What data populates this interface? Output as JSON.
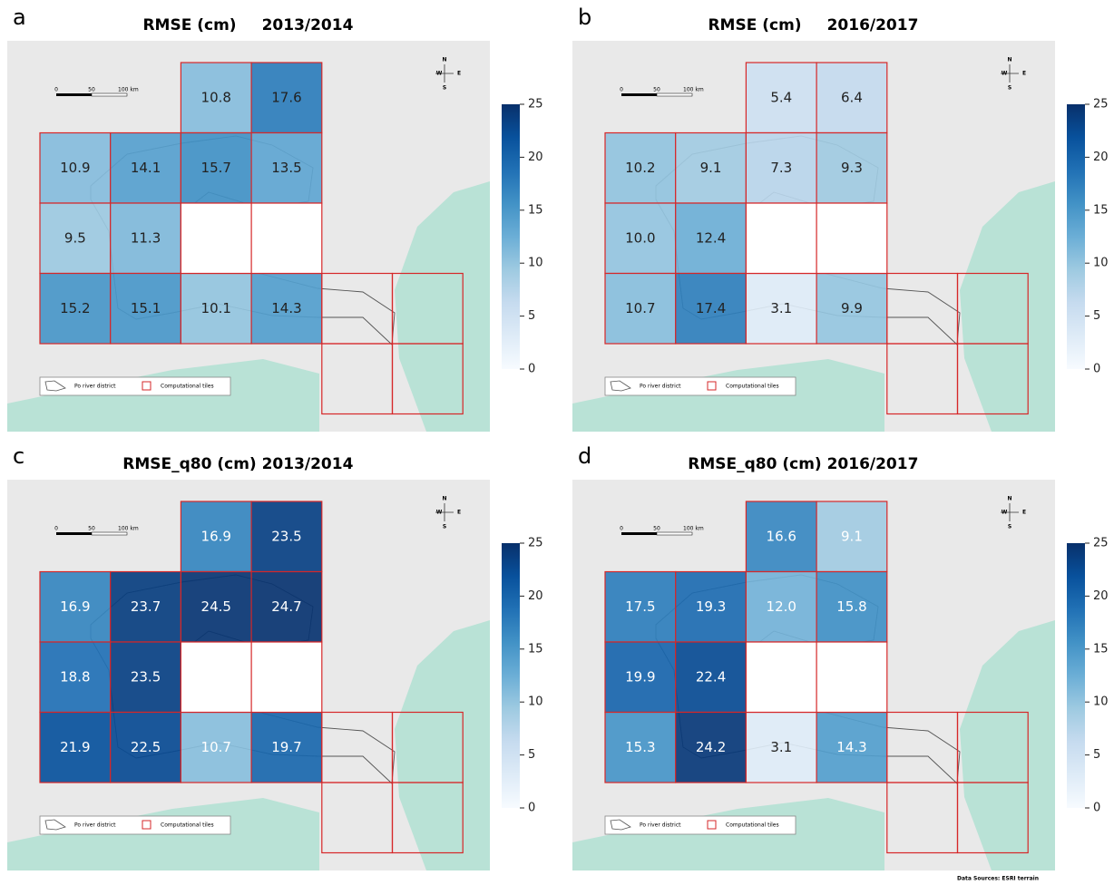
{
  "panels": [
    {
      "letter": "a",
      "metric": "RMSE (cm)",
      "period": "2013/2014",
      "label_color": "#222222",
      "values": [
        [
          null,
          null,
          10.8,
          17.6
        ],
        [
          10.9,
          14.1,
          15.7,
          13.5
        ],
        [
          9.5,
          11.3,
          null,
          null
        ],
        [
          15.2,
          15.1,
          10.1,
          14.3
        ]
      ]
    },
    {
      "letter": "b",
      "metric": "RMSE (cm)",
      "period": "2016/2017",
      "label_color": "#222222",
      "values": [
        [
          null,
          null,
          5.4,
          6.4
        ],
        [
          10.2,
          9.1,
          7.3,
          9.3
        ],
        [
          10,
          12.4,
          null,
          null
        ],
        [
          10.7,
          17.4,
          3.1,
          9.9
        ]
      ],
      "value_labels": [
        [
          null,
          null,
          "5.4",
          "6.4"
        ],
        [
          "10.2",
          "9.1",
          "7.3",
          "9.3"
        ],
        [
          "10.0",
          "12.4",
          null,
          null
        ],
        [
          "10.7",
          "17.4",
          "3.1",
          "9.9"
        ]
      ]
    },
    {
      "letter": "c",
      "metric": "RMSE_q80 (cm)",
      "period": "2013/2014",
      "label_color": "#ffffff",
      "values": [
        [
          null,
          null,
          16.9,
          23.5
        ],
        [
          16.9,
          23.7,
          24.5,
          24.7
        ],
        [
          18.8,
          23.5,
          null,
          null
        ],
        [
          21.9,
          22.5,
          10.7,
          19.7
        ]
      ]
    },
    {
      "letter": "d",
      "metric": "RMSE_q80 (cm)",
      "period": "2016/2017",
      "label_color": "#ffffff",
      "values": [
        [
          null,
          null,
          16.6,
          9.1
        ],
        [
          17.5,
          19.3,
          12,
          15.8
        ],
        [
          19.9,
          22.4,
          null,
          null
        ],
        [
          15.3,
          24.2,
          3.1,
          14.3
        ]
      ],
      "value_labels": [
        [
          null,
          null,
          "16.6",
          "9.1"
        ],
        [
          "17.5",
          "19.3",
          "12.0",
          "15.8"
        ],
        [
          "19.9",
          "22.4",
          null,
          null
        ],
        [
          "15.3",
          "24.2",
          "3.1",
          "14.3"
        ]
      ]
    }
  ],
  "colorbar": {
    "lim": [
      0,
      25
    ],
    "ticks": [
      0,
      5,
      10,
      15,
      20,
      25
    ],
    "colormap": [
      "#f7fbff",
      "#deebf7",
      "#c6dbef",
      "#9ecae1",
      "#6baed6",
      "#4292c6",
      "#2171b5",
      "#08519c",
      "#08306b"
    ]
  },
  "scale_bar": [
    "0",
    "50",
    "100 km"
  ],
  "compass": {
    "n": "N",
    "w": "W",
    "e": "E",
    "s": "S"
  },
  "legend": [
    "Po river district",
    "Computational tiles"
  ],
  "source": "Data Sources: ESRI terrain"
}
